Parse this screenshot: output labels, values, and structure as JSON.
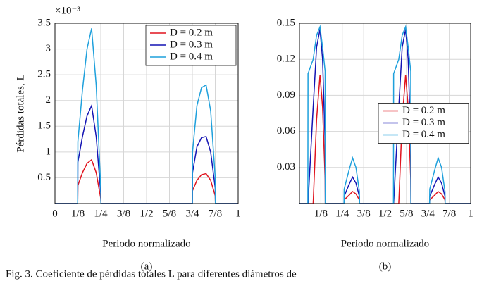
{
  "chart_data": [
    {
      "type": "line",
      "label": "(a)",
      "ylabel": "Pérdidas totales, L",
      "xlabel": "Periodo normalizado",
      "y_multiplier": "×10⁻³",
      "xlim": [
        0,
        1
      ],
      "ylim": [
        0,
        3.5
      ],
      "grid": true,
      "legend": "upper right",
      "xticks": [
        0,
        {
          "value": 0.125,
          "label": "1/8"
        },
        {
          "value": 0.25,
          "label": "1/4"
        },
        {
          "value": 0.375,
          "label": "3/8"
        },
        {
          "value": 0.5,
          "label": "1/2"
        },
        {
          "value": 0.625,
          "label": "5/8"
        },
        {
          "value": 0.75,
          "label": "3/4"
        },
        {
          "value": 0.875,
          "label": "7/8"
        },
        1
      ],
      "yticks": [
        0.5,
        1,
        1.5,
        2,
        2.5,
        3,
        3.5
      ],
      "x": [
        0,
        0.124,
        0.125,
        0.15,
        0.175,
        0.2,
        0.225,
        0.25,
        0.251,
        0.75,
        0.751,
        0.775,
        0.8,
        0.825,
        0.85,
        0.875,
        0.876,
        1
      ],
      "series": [
        {
          "name": "D = 0.2 m",
          "color": "#e0141e",
          "values": [
            0,
            0,
            0.35,
            0.6,
            0.78,
            0.85,
            0.6,
            0.1,
            0,
            0,
            0.25,
            0.45,
            0.56,
            0.58,
            0.45,
            0.15,
            0,
            0
          ]
        },
        {
          "name": "D = 0.3 m",
          "color": "#1414b4",
          "values": [
            0,
            0,
            0.8,
            1.3,
            1.7,
            1.9,
            1.3,
            0.2,
            0,
            0,
            0.6,
            1.1,
            1.28,
            1.3,
            1.0,
            0.3,
            0,
            0
          ]
        },
        {
          "name": "D = 0.4 m",
          "color": "#1ea0dc",
          "values": [
            0,
            0,
            1.2,
            2.2,
            3.0,
            3.4,
            2.3,
            0.3,
            0,
            0,
            1.0,
            1.9,
            2.25,
            2.3,
            1.8,
            0.5,
            0,
            0
          ]
        }
      ]
    },
    {
      "type": "line",
      "label": "(b)",
      "xlabel": "Periodo normalizado",
      "xlim": [
        0,
        1
      ],
      "ylim": [
        0,
        0.15
      ],
      "grid": true,
      "legend": "center right",
      "xticks": [
        {
          "value": 0.125,
          "label": "1/8"
        },
        {
          "value": 0.25,
          "label": "1/4"
        },
        {
          "value": 0.375,
          "label": "3/8"
        },
        {
          "value": 0.5,
          "label": "1/2"
        },
        {
          "value": 0.625,
          "label": "5/8"
        },
        {
          "value": 0.75,
          "label": "3/4"
        },
        {
          "value": 0.875,
          "label": "7/8"
        },
        1
      ],
      "yticks": [
        0.03,
        0.06,
        0.09,
        0.12,
        0.15
      ],
      "x": [
        0,
        0.049,
        0.05,
        0.08,
        0.1,
        0.12,
        0.135,
        0.15,
        0.151,
        0.26,
        0.261,
        0.29,
        0.31,
        0.33,
        0.35,
        0.351,
        0.549,
        0.55,
        0.58,
        0.6,
        0.62,
        0.635,
        0.65,
        0.651,
        0.76,
        0.761,
        0.79,
        0.81,
        0.83,
        0.85,
        0.851,
        1
      ],
      "series": [
        {
          "name": "D = 0.2 m",
          "color": "#e0141e",
          "values": [
            0,
            0,
            0,
            0,
            0.07,
            0.107,
            0.08,
            0.02,
            0,
            0,
            0.003,
            0.007,
            0.01,
            0.008,
            0.003,
            0,
            0,
            0,
            0,
            0.07,
            0.107,
            0.08,
            0.02,
            0,
            0,
            0.003,
            0.007,
            0.01,
            0.008,
            0.003,
            0,
            0
          ]
        },
        {
          "name": "D = 0.3 m",
          "color": "#1414b4",
          "values": [
            0,
            0,
            0,
            0.08,
            0.13,
            0.145,
            0.12,
            0.05,
            0,
            0,
            0.006,
            0.016,
            0.022,
            0.017,
            0.006,
            0,
            0,
            0,
            0.08,
            0.13,
            0.145,
            0.12,
            0.05,
            0,
            0,
            0.006,
            0.016,
            0.022,
            0.017,
            0.006,
            0,
            0
          ]
        },
        {
          "name": "D = 0.4 m",
          "color": "#1ea0dc",
          "values": [
            0,
            0,
            0.108,
            0.12,
            0.14,
            0.147,
            0.13,
            0.11,
            0,
            0,
            0.012,
            0.028,
            0.038,
            0.03,
            0.01,
            0,
            0,
            0.108,
            0.12,
            0.14,
            0.147,
            0.13,
            0.11,
            0,
            0,
            0.012,
            0.028,
            0.038,
            0.03,
            0.01,
            0,
            0
          ]
        }
      ]
    }
  ],
  "figure_caption": "Fig. 3.   Coeficiente de pérdidas totales L para diferentes diámetros de"
}
